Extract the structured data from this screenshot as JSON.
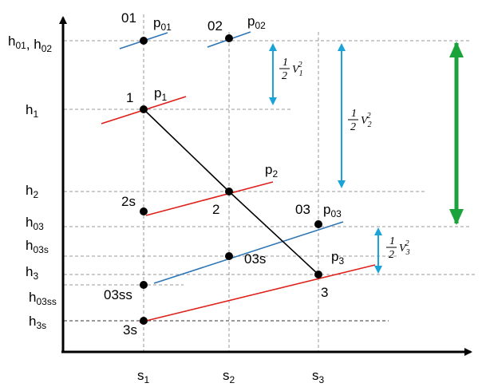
{
  "axis_labels": {
    "y": [
      {
        "parts": [
          {
            "text": "h",
            "sub": "01"
          },
          {
            "text": ", h",
            "sub": "02"
          }
        ]
      },
      {
        "parts": [
          {
            "text": "h",
            "sub": "1"
          }
        ]
      },
      {
        "parts": [
          {
            "text": "h",
            "sub": "2"
          }
        ]
      },
      {
        "parts": [
          {
            "text": "h",
            "sub": "03"
          }
        ]
      },
      {
        "parts": [
          {
            "text": "h",
            "sub": "03s"
          }
        ]
      },
      {
        "parts": [
          {
            "text": "h",
            "sub": "3"
          }
        ]
      },
      {
        "parts": [
          {
            "text": "h",
            "sub": "03ss"
          }
        ]
      },
      {
        "parts": [
          {
            "text": "h",
            "sub": "3s"
          }
        ]
      }
    ],
    "x": [
      {
        "parts": [
          {
            "text": "s",
            "sub": "1"
          }
        ]
      },
      {
        "parts": [
          {
            "text": "s",
            "sub": "2"
          }
        ]
      },
      {
        "parts": [
          {
            "text": "s",
            "sub": "3"
          }
        ]
      }
    ]
  },
  "points": [
    "01",
    "02",
    "1",
    "2s",
    "2",
    "03",
    "03s",
    "3",
    "03ss",
    "3s"
  ],
  "pressure_lines": [
    {
      "parts": [
        {
          "text": "p",
          "sub": "01"
        }
      ],
      "color": "#2e75b6"
    },
    {
      "parts": [
        {
          "text": "p",
          "sub": "02"
        }
      ],
      "color": "#2e75b6"
    },
    {
      "parts": [
        {
          "text": "p",
          "sub": "1"
        }
      ],
      "color": "#e0201b"
    },
    {
      "parts": [
        {
          "text": "p",
          "sub": "2"
        }
      ],
      "color": "#e0201b"
    },
    {
      "parts": [
        {
          "text": "p",
          "sub": "03"
        }
      ],
      "color": "#2e75b6"
    },
    {
      "parts": [
        {
          "text": "p",
          "sub": "3"
        }
      ],
      "color": "#e0201b"
    }
  ],
  "velocity_labels": [
    {
      "numerator": "1",
      "denominator": "2",
      "symbol": "V",
      "sub": "1",
      "sup": "2"
    },
    {
      "numerator": "1",
      "denominator": "2",
      "symbol": "V",
      "sub": "2",
      "sup": "2"
    },
    {
      "numerator": "1",
      "denominator": "2",
      "symbol": "V",
      "sub": "3",
      "sup": "2"
    }
  ]
}
